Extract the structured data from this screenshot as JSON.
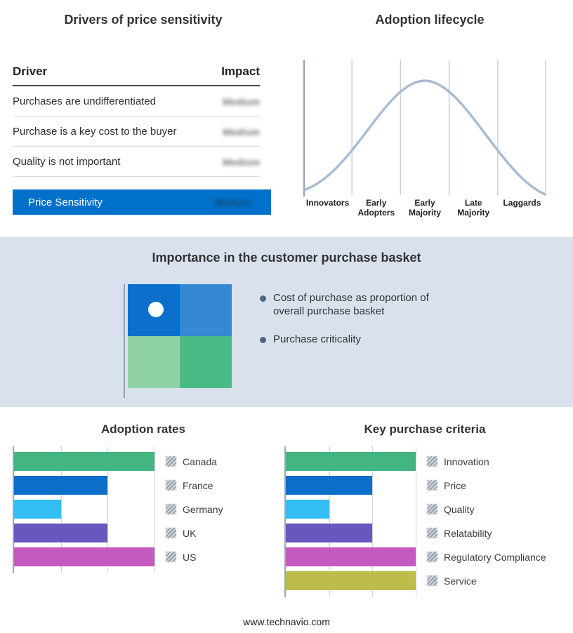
{
  "page": {
    "footer": "www.technavio.com"
  },
  "price_sensitivity": {
    "title": "Drivers of price sensitivity",
    "columns": [
      "Driver",
      "Impact"
    ],
    "rows": [
      {
        "driver": "Purchases are undifferentiated",
        "impact": "Medium"
      },
      {
        "driver": "Purchase is a key cost to the buyer",
        "impact": "Medium"
      },
      {
        "driver": "Quality is not important",
        "impact": "Medium"
      }
    ],
    "summary": {
      "label": "Price Sensitivity",
      "impact": "Medium"
    },
    "accent_color": "#0071cb"
  },
  "adoption_lifecycle": {
    "title": "Adoption lifecycle",
    "stages": [
      "Innovators",
      "Early Adopters",
      "Early Majority",
      "Late Majority",
      "Laggards"
    ],
    "curve_color": "#a9bcd3"
  },
  "purchase_basket": {
    "title": "Importance in the customer purchase basket",
    "bullets": [
      "Cost of purchase as proportion of overall purchase basket",
      "Purchase criticality"
    ],
    "quadrant_colors": [
      "#0a70cc",
      "#3488d4",
      "#8ed2a6",
      "#4bbb85"
    ],
    "band_color": "#d9e2ec"
  },
  "chart_data": [
    {
      "type": "bar",
      "orientation": "horizontal",
      "title": "Adoption rates",
      "categories": [
        "Canada",
        "France",
        "Germany",
        "UK",
        "US"
      ],
      "values": [
        3,
        2,
        1,
        2,
        3
      ],
      "colors": [
        "#43b581",
        "#0b6fca",
        "#33bdf2",
        "#6658bd",
        "#c45ac0"
      ],
      "xlim": [
        0,
        3
      ],
      "grid": true,
      "legend_position": "right"
    },
    {
      "type": "bar",
      "orientation": "horizontal",
      "title": "Key purchase criteria",
      "categories": [
        "Innovation",
        "Price",
        "Quality",
        "Relatability",
        "Regulatory Compliance",
        "Service"
      ],
      "values": [
        3,
        2,
        1,
        2,
        3,
        3
      ],
      "colors": [
        "#43b581",
        "#0b6fca",
        "#33bdf2",
        "#6658bd",
        "#c45ac0",
        "#bcbd4a"
      ],
      "xlim": [
        0,
        3
      ],
      "grid": true,
      "legend_position": "right"
    }
  ]
}
